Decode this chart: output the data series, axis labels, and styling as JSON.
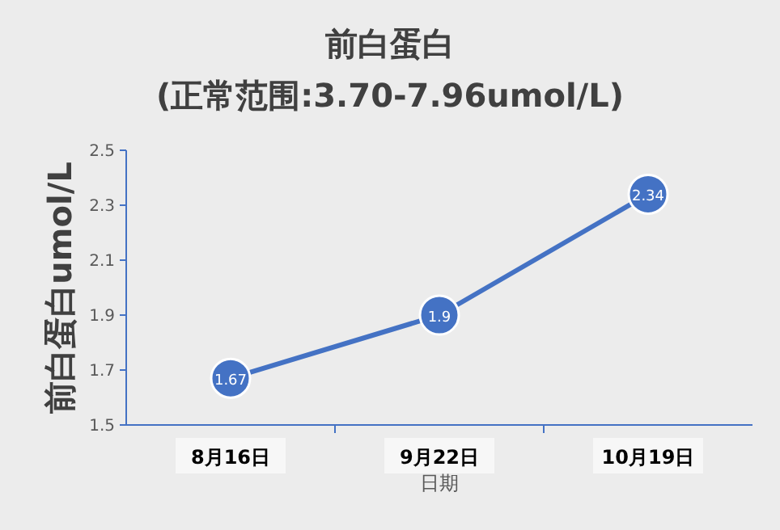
{
  "chart_data": {
    "type": "line",
    "title": "前白蛋白",
    "subtitle": "(正常范围:3.70-7.96umol/L)",
    "xlabel": "日期",
    "ylabel": "前白蛋白umol/L",
    "categories": [
      "8月16日",
      "9月22日",
      "10月19日"
    ],
    "series": [
      {
        "color": "#4472c4",
        "values": [
          1.67,
          1.9,
          2.34
        ]
      }
    ],
    "ylim": [
      1.5,
      2.5
    ],
    "yticks": [
      1.5,
      1.7,
      1.9,
      2.1,
      2.3,
      2.5
    ],
    "marker": "circle",
    "data_labels": true
  }
}
